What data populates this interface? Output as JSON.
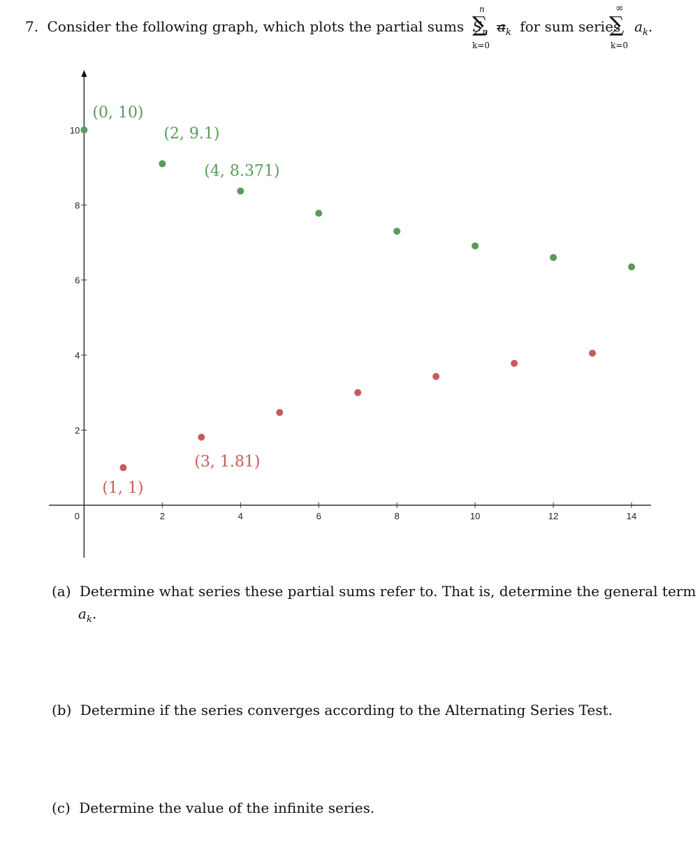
{
  "question": {
    "number": "7.",
    "text_before": "Consider the following graph, which plots the partial sums",
    "sn": "S",
    "sn_sub": "n",
    "equals": "=",
    "sum1_upper": "n",
    "sum1_lower": "k=0",
    "term1": "a",
    "term1_sub": "k",
    "mid_text": "for sum series",
    "sum2_upper": "∞",
    "sum2_lower": "k=0",
    "term2": "a",
    "term2_sub": "k",
    "end_punct": "."
  },
  "chart_data": {
    "type": "scatter",
    "xlim": [
      -0.9,
      14.5
    ],
    "ylim": [
      -1.4,
      11.6
    ],
    "xticks": [
      0,
      2,
      4,
      6,
      8,
      10,
      12,
      14
    ],
    "yticks": [
      2,
      4,
      6,
      8,
      10
    ],
    "series": [
      {
        "color": "#5a9a5a",
        "points": [
          [
            0,
            10
          ],
          [
            2,
            9.1
          ],
          [
            4,
            8.371
          ],
          [
            6,
            7.78
          ],
          [
            8,
            7.3
          ],
          [
            10,
            6.91
          ],
          [
            12,
            6.6
          ],
          [
            14,
            6.35
          ]
        ]
      },
      {
        "color": "#c85a5a",
        "points": [
          [
            1,
            1
          ],
          [
            3,
            1.81
          ],
          [
            5,
            2.47
          ],
          [
            7,
            3.0
          ],
          [
            9,
            3.43
          ],
          [
            11,
            3.78
          ],
          [
            13,
            4.05
          ]
        ]
      }
    ],
    "annotations": [
      {
        "text": "(0, 10)",
        "x": 0,
        "y": 10,
        "color": "#5a9a5a"
      },
      {
        "text": "(2, 9.1)",
        "x": 2,
        "y": 9.1,
        "color": "#5a9a5a"
      },
      {
        "text": "(4, 8.371)",
        "x": 4,
        "y": 8.371,
        "color": "#5a9a5a"
      },
      {
        "text": "(1, 1)",
        "x": 1,
        "y": 1,
        "color": "#c85a5a"
      },
      {
        "text": "(3, 1.81)",
        "x": 3,
        "y": 1.81,
        "color": "#c85a5a"
      }
    ]
  },
  "parts": {
    "a_label": "(a)",
    "a_text": "Determine what series these partial sums refer to. That is, determine the general term",
    "a_term": "a",
    "a_term_sub": "k",
    "a_end": ".",
    "b_label": "(b)",
    "b_text": "Determine if the series converges according to the Alternating Series Test.",
    "c_label": "(c)",
    "c_text": "Determine the value of the infinite series."
  }
}
